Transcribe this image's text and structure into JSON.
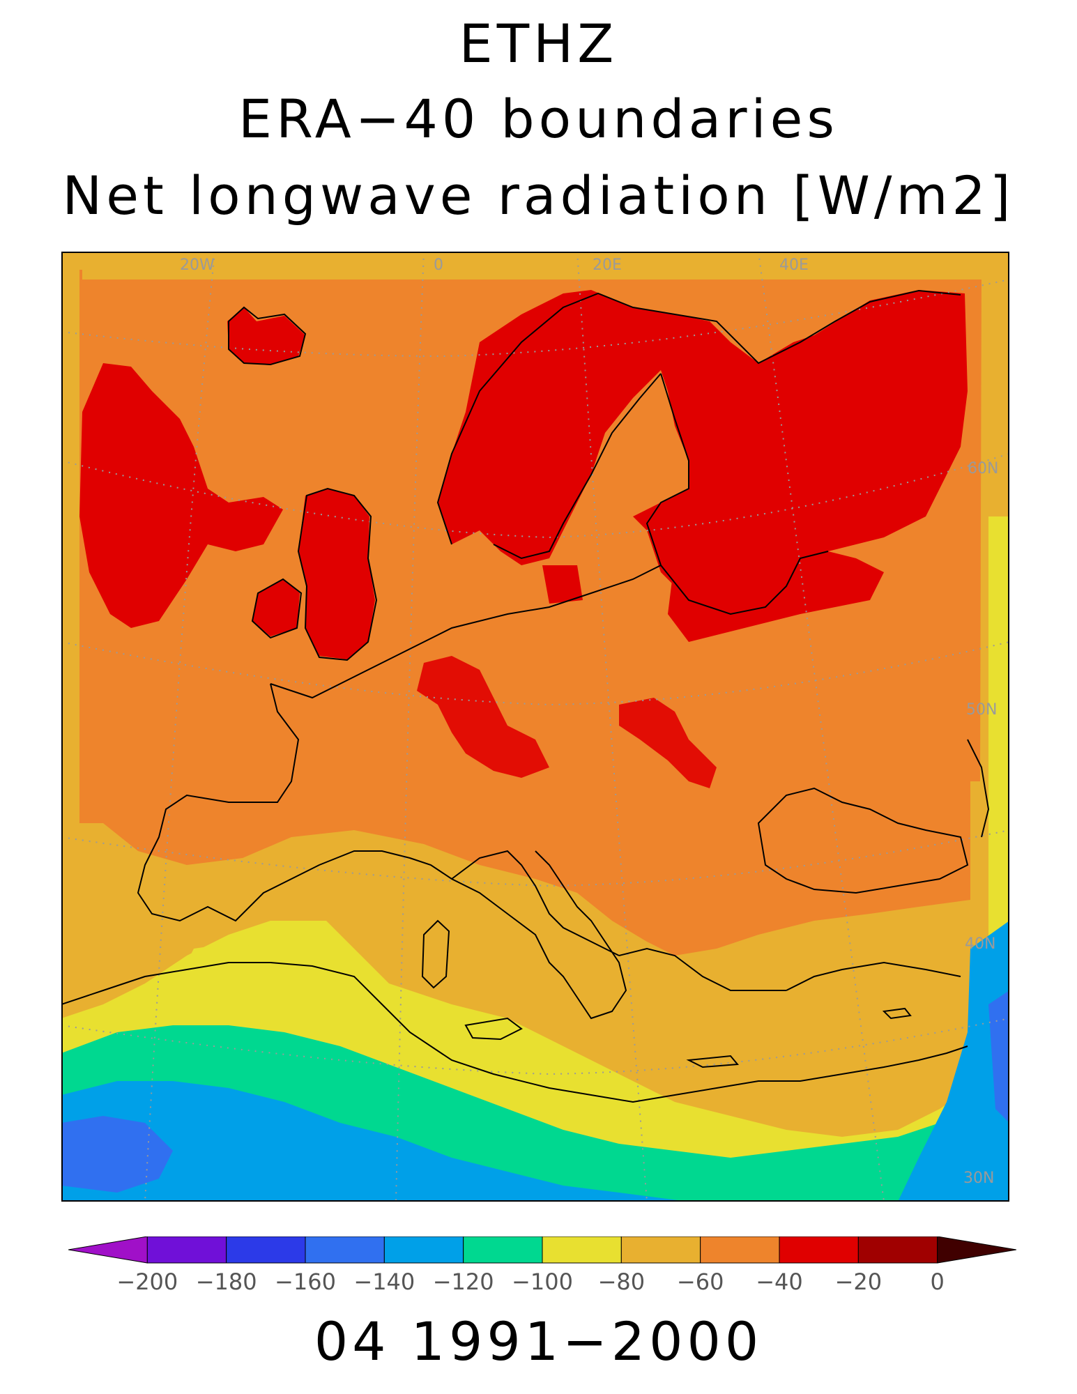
{
  "titles": {
    "line1": "ETHZ",
    "line2": "ERA−40 boundaries",
    "line3": "Net longwave radiation [W/m2]"
  },
  "footer": "04 1991−2000",
  "map": {
    "lon_labels": [
      "20W",
      "0",
      "20E",
      "40E"
    ],
    "lat_labels": [
      "60N",
      "50N",
      "40N",
      "30N"
    ],
    "background_color": "#ee842c",
    "coastline_color": "#000000",
    "gridline_color": "#9a9a9a"
  },
  "colorbar": {
    "colors": [
      "#a010c8",
      "#7010d8",
      "#2c3ae8",
      "#3070f0",
      "#00a0e8",
      "#00d890",
      "#e8e030",
      "#e8b030",
      "#ee842c",
      "#e00000",
      "#a00000",
      "#400000"
    ],
    "tick_labels": [
      "−200",
      "−180",
      "−160",
      "−140",
      "−120",
      "−100",
      "−80",
      "−60",
      "−40",
      "−20",
      "0"
    ],
    "min": -220,
    "max": 20,
    "step": 20,
    "extend": "both"
  }
}
